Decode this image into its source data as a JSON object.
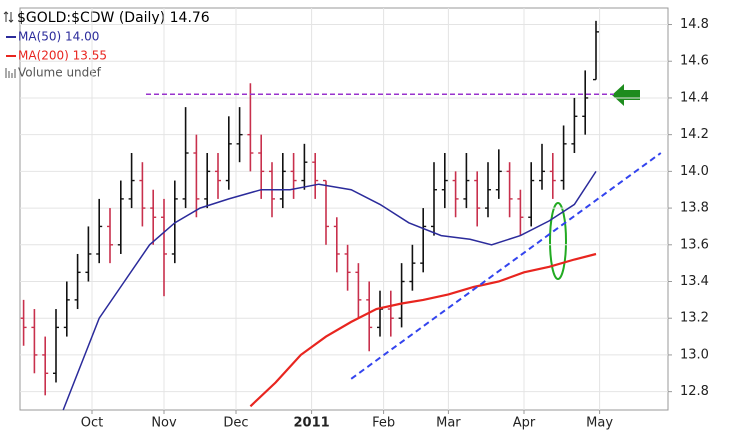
{
  "chart_data": {
    "type": "ohlc",
    "title": "$GOLD:$CDW (Daily) 14.76",
    "legend": "top-left",
    "legend_extra": "Volume undef",
    "xlim": [
      0,
      180
    ],
    "ylim": [
      12.7,
      14.89
    ],
    "xticks": [
      {
        "value": 20,
        "label": "Oct"
      },
      {
        "value": 40,
        "label": "Nov"
      },
      {
        "value": 60,
        "label": "Dec"
      },
      {
        "value": 81,
        "label": "2011"
      },
      {
        "value": 101,
        "label": "Feb"
      },
      {
        "value": 119,
        "label": "Mar"
      },
      {
        "value": 140,
        "label": "Apr"
      },
      {
        "value": 161,
        "label": "May"
      }
    ],
    "yticks": [
      12.8,
      {
        "value": 13,
        "label": "13.0"
      },
      13.2,
      13.4,
      13.6,
      13.8,
      {
        "value": 14,
        "label": "14.0"
      },
      14.2,
      14.4,
      14.6,
      14.8
    ],
    "grid": true,
    "ohlc": {
      "up_color": "#111111",
      "down_color": "#c8304c",
      "x": [
        1,
        4,
        7,
        10,
        13,
        16,
        19,
        22,
        25,
        28,
        31,
        34,
        37,
        40,
        43,
        46,
        49,
        52,
        55,
        58,
        61,
        64,
        67,
        70,
        73,
        76,
        79,
        82,
        85,
        88,
        91,
        94,
        97,
        100,
        103,
        106,
        109,
        112,
        115,
        118,
        121,
        124,
        127,
        130,
        133,
        136,
        139,
        142,
        145,
        148,
        151,
        154,
        157,
        160
      ],
      "open": [
        13.2,
        13.15,
        13.0,
        12.9,
        13.15,
        13.3,
        13.45,
        13.55,
        13.7,
        13.6,
        13.85,
        13.95,
        13.8,
        13.75,
        13.55,
        13.85,
        14.1,
        13.85,
        14.0,
        13.95,
        14.15,
        14.2,
        14.1,
        14.0,
        13.85,
        14.0,
        13.95,
        14.05,
        13.95,
        13.7,
        13.55,
        13.45,
        13.3,
        13.15,
        13.25,
        13.2,
        13.4,
        13.5,
        13.7,
        13.9,
        13.95,
        13.85,
        13.95,
        13.8,
        13.9,
        14.0,
        13.85,
        13.75,
        13.95,
        14.0,
        13.95,
        14.15,
        14.3,
        14.5
      ],
      "high": [
        13.3,
        13.25,
        13.1,
        13.25,
        13.4,
        13.55,
        13.7,
        13.85,
        13.8,
        13.95,
        14.1,
        14.05,
        13.9,
        13.85,
        13.95,
        14.35,
        14.2,
        14.1,
        14.1,
        14.3,
        14.35,
        14.48,
        14.2,
        14.05,
        14.1,
        14.1,
        14.15,
        14.1,
        13.95,
        13.75,
        13.6,
        13.5,
        13.4,
        13.35,
        13.35,
        13.5,
        13.6,
        13.8,
        14.05,
        14.1,
        14.0,
        14.1,
        14.0,
        14.05,
        14.12,
        14.05,
        13.9,
        14.05,
        14.15,
        14.1,
        14.25,
        14.4,
        14.55,
        14.82
      ],
      "low": [
        13.05,
        12.9,
        12.78,
        12.85,
        13.1,
        13.25,
        13.4,
        13.5,
        13.5,
        13.55,
        13.8,
        13.7,
        13.6,
        13.32,
        13.5,
        13.8,
        13.75,
        13.8,
        13.85,
        13.9,
        14.05,
        14.0,
        13.85,
        13.75,
        13.8,
        13.85,
        13.9,
        13.85,
        13.6,
        13.45,
        13.35,
        13.2,
        13.02,
        13.1,
        13.1,
        13.15,
        13.35,
        13.45,
        13.65,
        13.8,
        13.75,
        13.8,
        13.7,
        13.75,
        13.85,
        13.75,
        13.65,
        13.7,
        13.9,
        13.85,
        13.9,
        14.1,
        14.2,
        14.5
      ],
      "close": [
        13.15,
        13.0,
        12.9,
        13.15,
        13.3,
        13.45,
        13.55,
        13.7,
        13.6,
        13.85,
        13.95,
        13.8,
        13.75,
        13.55,
        13.85,
        14.1,
        13.85,
        14.0,
        13.95,
        14.15,
        14.2,
        14.1,
        14.0,
        13.85,
        14.0,
        13.95,
        14.05,
        13.95,
        13.7,
        13.55,
        13.45,
        13.3,
        13.15,
        13.25,
        13.2,
        13.4,
        13.5,
        13.7,
        13.9,
        13.95,
        13.85,
        13.95,
        13.8,
        13.9,
        14.0,
        13.85,
        13.75,
        13.95,
        14.0,
        13.95,
        14.15,
        14.3,
        14.4,
        14.76
      ]
    },
    "series": [
      {
        "name": "MA(50) 14.00",
        "color": "#2b2b9b",
        "x": [
          12,
          17,
          22,
          29,
          36,
          43,
          50,
          58,
          67,
          75,
          83,
          92,
          100,
          108,
          117,
          125,
          131,
          139,
          147,
          154,
          160
        ],
        "values": [
          12.7,
          12.95,
          13.2,
          13.4,
          13.6,
          13.72,
          13.8,
          13.85,
          13.9,
          13.9,
          13.93,
          13.9,
          13.82,
          13.72,
          13.65,
          13.63,
          13.6,
          13.65,
          13.73,
          13.82,
          14.0
        ]
      },
      {
        "name": "MA(200) 13.55",
        "color": "#e8251f",
        "x": [
          64,
          71,
          78,
          85,
          92,
          99,
          106,
          112,
          119,
          126,
          133,
          140,
          147,
          154,
          160
        ],
        "values": [
          12.72,
          12.85,
          13.0,
          13.1,
          13.18,
          13.25,
          13.28,
          13.3,
          13.33,
          13.37,
          13.4,
          13.45,
          13.48,
          13.52,
          13.55
        ]
      }
    ],
    "lines": [
      {
        "color": "#9933cc",
        "x": [
          35,
          165
        ],
        "y": [
          14.42,
          14.42
        ]
      },
      {
        "color": "#3344ee",
        "x": [
          92,
          178
        ],
        "y": [
          12.87,
          14.1
        ]
      }
    ]
  }
}
